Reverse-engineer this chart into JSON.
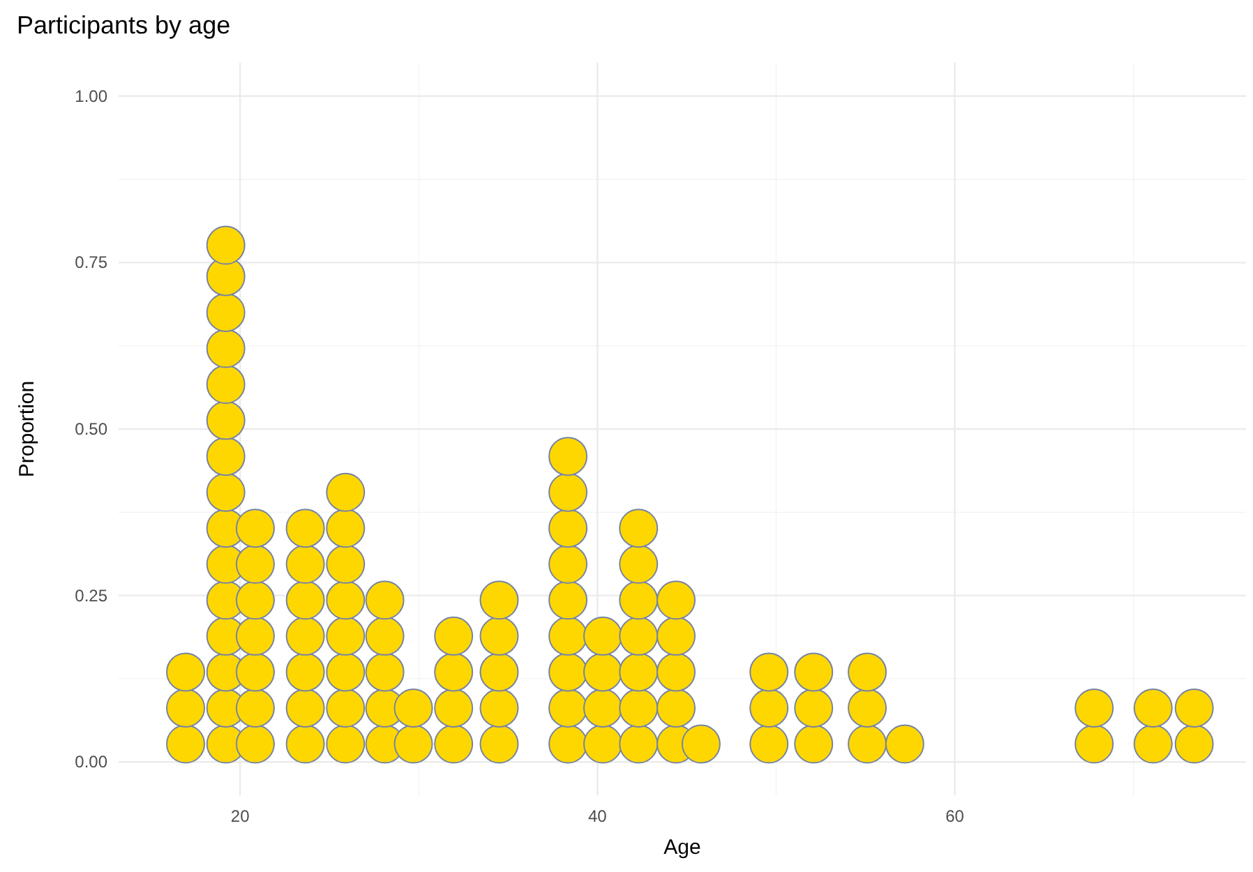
{
  "chart_data": {
    "type": "scatter",
    "title": "Participants by age",
    "xlabel": "Age",
    "ylabel": "Proportion",
    "xlim": [
      13.2,
      76.3
    ],
    "ylim": [
      -0.05,
      1.05
    ],
    "xticks": [
      20,
      40,
      60
    ],
    "yticks": [
      {
        "value": 0,
        "label": "0.00"
      },
      {
        "value": 0.25,
        "label": "0.25"
      },
      {
        "value": 0.5,
        "label": "0.50"
      },
      {
        "value": 0.75,
        "label": "0.75"
      },
      {
        "value": 1,
        "label": "1.00"
      }
    ],
    "grid": true,
    "marker": "circle",
    "series": [
      {
        "color": "#ffd700",
        "x": [
          16.95,
          16.95,
          16.95,
          19.2,
          19.2,
          19.2,
          19.2,
          19.2,
          19.2,
          19.2,
          19.2,
          19.2,
          19.2,
          19.2,
          19.2,
          19.2,
          19.2,
          19.2,
          20.85,
          20.85,
          20.85,
          20.85,
          20.85,
          20.85,
          20.85,
          23.65,
          23.65,
          23.65,
          23.65,
          23.65,
          23.65,
          23.65,
          25.9,
          25.9,
          25.9,
          25.9,
          25.9,
          25.9,
          25.9,
          25.9,
          28.1,
          28.1,
          28.1,
          28.1,
          28.1,
          29.7,
          29.7,
          31.95,
          31.95,
          31.95,
          31.95,
          34.5,
          34.5,
          34.5,
          34.5,
          34.5,
          38.35,
          38.35,
          38.35,
          38.35,
          38.35,
          38.35,
          38.35,
          38.35,
          38.35,
          40.3,
          40.3,
          40.3,
          40.3,
          42.3,
          42.3,
          42.3,
          42.3,
          42.3,
          42.3,
          42.3,
          44.4,
          44.4,
          44.4,
          44.4,
          44.4,
          45.8,
          49.6,
          49.6,
          49.6,
          52.1,
          52.1,
          52.1,
          55.1,
          55.1,
          55.1,
          57.2,
          67.8,
          67.8,
          71.1,
          71.1,
          73.4,
          73.4
        ],
        "values": [
          0.027,
          0.081,
          0.135,
          0.027,
          0.081,
          0.135,
          0.189,
          0.243,
          0.297,
          0.351,
          0.405,
          0.459,
          0.513,
          0.567,
          0.621,
          0.675,
          0.729,
          0.776,
          0.027,
          0.081,
          0.135,
          0.189,
          0.243,
          0.297,
          0.351,
          0.027,
          0.081,
          0.135,
          0.189,
          0.243,
          0.297,
          0.351,
          0.027,
          0.081,
          0.135,
          0.189,
          0.243,
          0.297,
          0.351,
          0.405,
          0.027,
          0.081,
          0.135,
          0.189,
          0.243,
          0.027,
          0.081,
          0.027,
          0.081,
          0.135,
          0.189,
          0.027,
          0.081,
          0.135,
          0.189,
          0.243,
          0.027,
          0.081,
          0.135,
          0.189,
          0.243,
          0.297,
          0.351,
          0.405,
          0.459,
          0.027,
          0.081,
          0.135,
          0.189,
          0.027,
          0.081,
          0.135,
          0.189,
          0.243,
          0.297,
          0.351,
          0.027,
          0.081,
          0.135,
          0.189,
          0.243,
          0.027,
          0.027,
          0.081,
          0.135,
          0.027,
          0.081,
          0.135,
          0.027,
          0.081,
          0.135,
          0.027,
          0.027,
          0.081,
          0.027,
          0.081,
          0.027,
          0.081
        ]
      }
    ]
  }
}
